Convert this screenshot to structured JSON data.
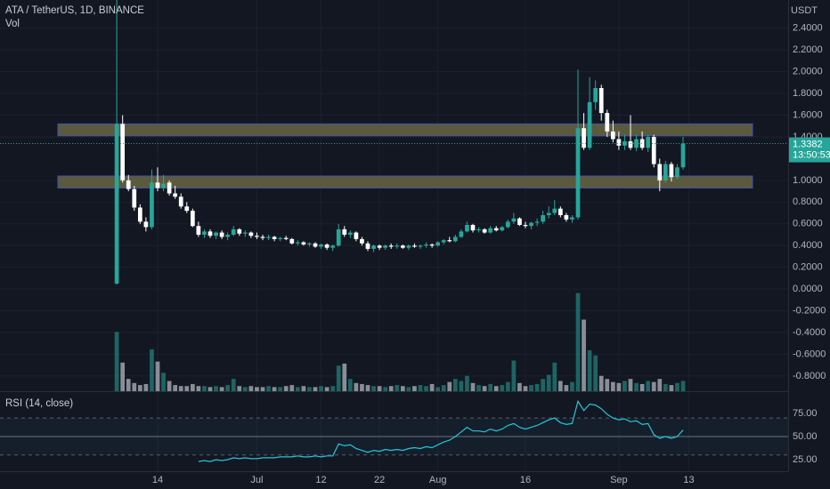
{
  "chart_data": {
    "type": "candlestick",
    "title": "ATA / TetherUS, 1D, BINANCE",
    "currency": "USDT",
    "up_color": "#26a69a",
    "down_color": "#ffffff",
    "open": [
      0.05,
      1.52,
      1.0,
      0.92,
      0.75,
      0.62,
      0.57,
      0.98,
      0.93,
      0.98,
      0.88,
      0.85,
      0.76,
      0.72,
      0.58,
      0.5,
      0.53,
      0.49,
      0.52,
      0.48,
      0.5,
      0.55,
      0.51,
      0.52,
      0.49,
      0.48,
      0.47,
      0.48,
      0.46,
      0.47,
      0.46,
      0.42,
      0.43,
      0.41,
      0.42,
      0.39,
      0.41,
      0.38,
      0.4,
      0.55,
      0.5,
      0.52,
      0.46,
      0.42,
      0.37,
      0.4,
      0.38,
      0.4,
      0.39,
      0.4,
      0.38,
      0.4,
      0.39,
      0.4,
      0.41,
      0.4,
      0.43,
      0.45,
      0.44,
      0.48,
      0.53,
      0.59,
      0.54,
      0.55,
      0.52,
      0.56,
      0.54,
      0.57,
      0.62,
      0.65,
      0.59,
      0.58,
      0.61,
      0.62,
      0.68,
      0.7,
      0.74,
      0.68,
      0.64,
      0.66,
      1.48,
      1.3,
      1.72,
      1.85,
      1.62,
      1.45,
      1.38,
      1.32,
      1.36,
      1.3,
      1.38,
      1.3,
      1.4,
      1.15,
      1.0,
      1.15,
      1.03,
      1.12
    ],
    "high": [
      2.7,
      1.6,
      1.05,
      0.95,
      0.78,
      0.66,
      1.1,
      1.12,
      1.05,
      1.0,
      0.95,
      0.88,
      0.8,
      0.74,
      0.62,
      0.55,
      0.55,
      0.53,
      0.54,
      0.52,
      0.58,
      0.56,
      0.54,
      0.53,
      0.52,
      0.5,
      0.5,
      0.49,
      0.48,
      0.49,
      0.47,
      0.45,
      0.44,
      0.43,
      0.43,
      0.42,
      0.42,
      0.41,
      0.6,
      0.58,
      0.54,
      0.53,
      0.48,
      0.44,
      0.41,
      0.41,
      0.41,
      0.42,
      0.42,
      0.41,
      0.41,
      0.42,
      0.41,
      0.43,
      0.42,
      0.44,
      0.46,
      0.48,
      0.5,
      0.55,
      0.62,
      0.6,
      0.57,
      0.56,
      0.58,
      0.58,
      0.58,
      0.64,
      0.7,
      0.66,
      0.62,
      0.62,
      0.65,
      0.72,
      0.76,
      0.82,
      0.76,
      0.7,
      0.68,
      2.02,
      1.62,
      1.95,
      1.92,
      1.88,
      1.65,
      1.55,
      1.45,
      1.42,
      1.6,
      1.42,
      1.45,
      1.42,
      1.42,
      1.2,
      1.18,
      1.17,
      1.15,
      1.4
    ],
    "low": [
      0.04,
      0.98,
      0.9,
      0.72,
      0.6,
      0.53,
      0.55,
      0.9,
      0.9,
      0.86,
      0.83,
      0.74,
      0.7,
      0.57,
      0.48,
      0.47,
      0.47,
      0.46,
      0.46,
      0.45,
      0.49,
      0.49,
      0.48,
      0.47,
      0.46,
      0.45,
      0.45,
      0.44,
      0.44,
      0.45,
      0.41,
      0.4,
      0.4,
      0.39,
      0.38,
      0.37,
      0.36,
      0.35,
      0.39,
      0.48,
      0.47,
      0.44,
      0.4,
      0.35,
      0.34,
      0.36,
      0.36,
      0.37,
      0.37,
      0.37,
      0.36,
      0.38,
      0.37,
      0.38,
      0.38,
      0.39,
      0.41,
      0.43,
      0.43,
      0.47,
      0.52,
      0.52,
      0.52,
      0.51,
      0.51,
      0.53,
      0.53,
      0.56,
      0.6,
      0.58,
      0.56,
      0.55,
      0.58,
      0.6,
      0.65,
      0.68,
      0.66,
      0.62,
      0.61,
      0.64,
      1.28,
      1.28,
      1.65,
      1.55,
      1.4,
      1.35,
      1.28,
      1.28,
      1.28,
      1.27,
      1.28,
      1.26,
      1.12,
      0.9,
      0.98,
      0.99,
      1.01,
      1.1
    ],
    "close": [
      1.52,
      1.0,
      0.92,
      0.75,
      0.62,
      0.57,
      0.98,
      0.93,
      0.97,
      0.88,
      0.85,
      0.76,
      0.72,
      0.58,
      0.5,
      0.53,
      0.49,
      0.52,
      0.48,
      0.5,
      0.55,
      0.51,
      0.52,
      0.49,
      0.48,
      0.47,
      0.48,
      0.46,
      0.47,
      0.46,
      0.42,
      0.43,
      0.41,
      0.42,
      0.39,
      0.41,
      0.38,
      0.4,
      0.55,
      0.5,
      0.52,
      0.46,
      0.42,
      0.37,
      0.4,
      0.38,
      0.4,
      0.39,
      0.4,
      0.38,
      0.4,
      0.39,
      0.4,
      0.41,
      0.4,
      0.43,
      0.45,
      0.44,
      0.48,
      0.53,
      0.59,
      0.54,
      0.55,
      0.52,
      0.56,
      0.54,
      0.57,
      0.62,
      0.65,
      0.59,
      0.58,
      0.61,
      0.62,
      0.68,
      0.7,
      0.74,
      0.68,
      0.64,
      0.66,
      1.48,
      1.3,
      1.72,
      1.85,
      1.62,
      1.45,
      1.38,
      1.32,
      1.36,
      1.3,
      1.38,
      1.3,
      1.4,
      1.15,
      1.0,
      1.15,
      1.03,
      1.12,
      1.3382
    ],
    "countdown": "13:50:53",
    "ylim": [
      -0.94,
      2.66
    ],
    "yticks": [
      {
        "value": 2.4,
        "label": "2.4000"
      },
      {
        "value": 2.2,
        "label": "2.2000"
      },
      {
        "value": 2.0,
        "label": "2.0000"
      },
      {
        "value": 1.8,
        "label": "1.8000"
      },
      {
        "value": 1.6,
        "label": "1.6000"
      },
      {
        "value": 1.4,
        "label": "1.4000"
      },
      {
        "value": 1.0,
        "label": "1.0000"
      },
      {
        "value": 0.8,
        "label": "0.8000"
      },
      {
        "value": 0.6,
        "label": "0.6000"
      },
      {
        "value": 0.4,
        "label": "0.4000"
      },
      {
        "value": 0.2,
        "label": "0.2000"
      },
      {
        "value": 0,
        "label": "0.0000"
      },
      {
        "value": -0.2,
        "label": "-0.2000"
      },
      {
        "value": -0.4,
        "label": "-0.4000"
      },
      {
        "value": -0.6,
        "label": "-0.6000"
      },
      {
        "value": -0.8,
        "label": "-0.8000"
      }
    ],
    "zones": [
      [
        1.41,
        1.52
      ],
      [
        0.93,
        1.04
      ]
    ],
    "xlim": [
      -20,
      115
    ],
    "xticks": [
      {
        "value": 7,
        "label": "14"
      },
      {
        "value": 24,
        "label": "Jul"
      },
      {
        "value": 35,
        "label": "12"
      },
      {
        "value": 45,
        "label": "22"
      },
      {
        "value": 55,
        "label": "Aug"
      },
      {
        "value": 70,
        "label": "16"
      },
      {
        "value": 86,
        "label": "Sep"
      },
      {
        "value": 98,
        "label": "13"
      }
    ],
    "volume": {
      "name": "Vol",
      "ylim": [
        0,
        100
      ],
      "values": [
        58,
        28,
        12,
        8,
        6,
        7,
        41,
        29,
        18,
        10,
        6,
        5,
        5,
        7,
        5,
        5,
        4,
        5,
        4,
        6,
        12,
        5,
        4,
        5,
        4,
        4,
        5,
        4,
        4,
        5,
        6,
        4,
        5,
        4,
        4,
        5,
        4,
        5,
        25,
        27,
        12,
        8,
        7,
        6,
        5,
        5,
        4,
        5,
        6,
        5,
        4,
        5,
        6,
        5,
        7,
        4,
        6,
        9,
        12,
        10,
        15,
        8,
        6,
        5,
        7,
        5,
        6,
        9,
        30,
        8,
        5,
        6,
        7,
        12,
        16,
        28,
        10,
        6,
        9,
        96,
        70,
        40,
        35,
        15,
        12,
        9,
        8,
        10,
        12,
        8,
        7,
        10,
        9,
        12,
        7,
        6,
        8,
        10
      ]
    },
    "rsi": {
      "name": "RSI (14, close)",
      "color": "#26c6da",
      "ylim": [
        12.5,
        98
      ],
      "yticks": [
        {
          "value": 75,
          "label": "75.00"
        },
        {
          "value": 50,
          "label": "50.00"
        },
        {
          "value": 25,
          "label": "25.00"
        }
      ],
      "bands": [
        30,
        50,
        70
      ],
      "values": [
        null,
        null,
        null,
        null,
        null,
        null,
        null,
        null,
        null,
        null,
        null,
        null,
        null,
        null,
        23,
        24,
        23,
        25,
        24,
        25,
        27,
        26,
        27,
        26,
        26,
        27,
        27,
        27,
        28,
        28,
        28,
        29,
        28,
        28,
        29,
        28,
        29,
        29,
        42,
        40,
        41,
        37,
        35,
        33,
        35,
        34,
        36,
        35,
        36,
        35,
        37,
        38,
        37,
        39,
        38,
        41,
        44,
        46,
        50,
        55,
        60,
        56,
        56,
        55,
        58,
        56,
        58,
        62,
        64,
        60,
        58,
        60,
        62,
        65,
        68,
        70,
        65,
        63,
        64,
        88,
        78,
        85,
        84,
        80,
        74,
        70,
        68,
        69,
        66,
        67,
        63,
        64,
        52,
        48,
        50,
        48,
        50,
        57
      ]
    }
  }
}
